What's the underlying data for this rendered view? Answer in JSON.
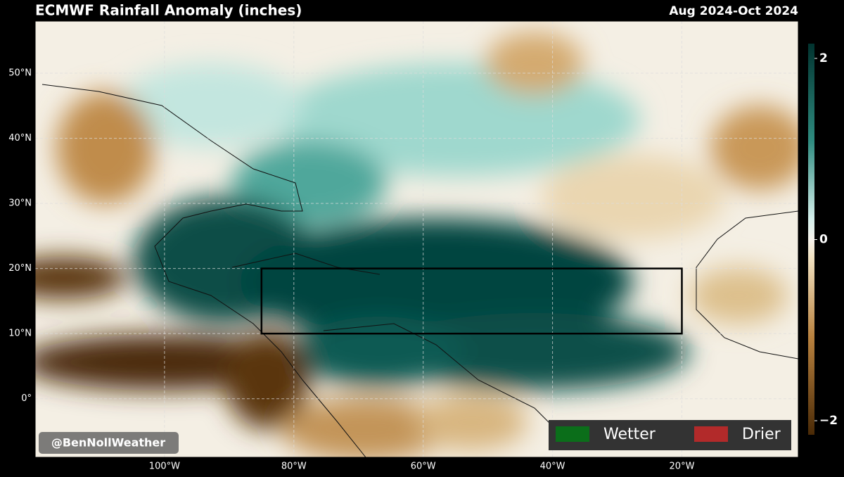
{
  "map": {
    "title": "ECMWF Rainfall Anomaly (inches)",
    "period": "Aug 2024-Oct 2024",
    "lon_range": [
      -120,
      -2
    ],
    "lat_range": [
      -9,
      58
    ],
    "lat_ticks": [
      {
        "value": 50,
        "label": "50°N"
      },
      {
        "value": 40,
        "label": "40°N"
      },
      {
        "value": 30,
        "label": "30°N"
      },
      {
        "value": 20,
        "label": "20°N"
      },
      {
        "value": 10,
        "label": "10°N"
      },
      {
        "value": 0,
        "label": "0°"
      }
    ],
    "lon_ticks": [
      {
        "value": -100,
        "label": "100°W"
      },
      {
        "value": -80,
        "label": "80°W"
      },
      {
        "value": -60,
        "label": "60°W"
      },
      {
        "value": -40,
        "label": "40°W"
      },
      {
        "value": -20,
        "label": "20°W"
      }
    ],
    "box": {
      "lon": [
        -85,
        -20
      ],
      "lat": [
        10,
        20
      ]
    },
    "colorbar": {
      "range": [
        -2,
        2
      ],
      "ticks": [
        2,
        0,
        {
          "value": -2,
          "label": "−2"
        }
      ]
    },
    "legend": [
      {
        "name": "Wetter",
        "color": "#0b6e1a"
      },
      {
        "name": "Drier",
        "color": "#b22a2a"
      }
    ],
    "watermark": "@BenNollWeather"
  }
}
